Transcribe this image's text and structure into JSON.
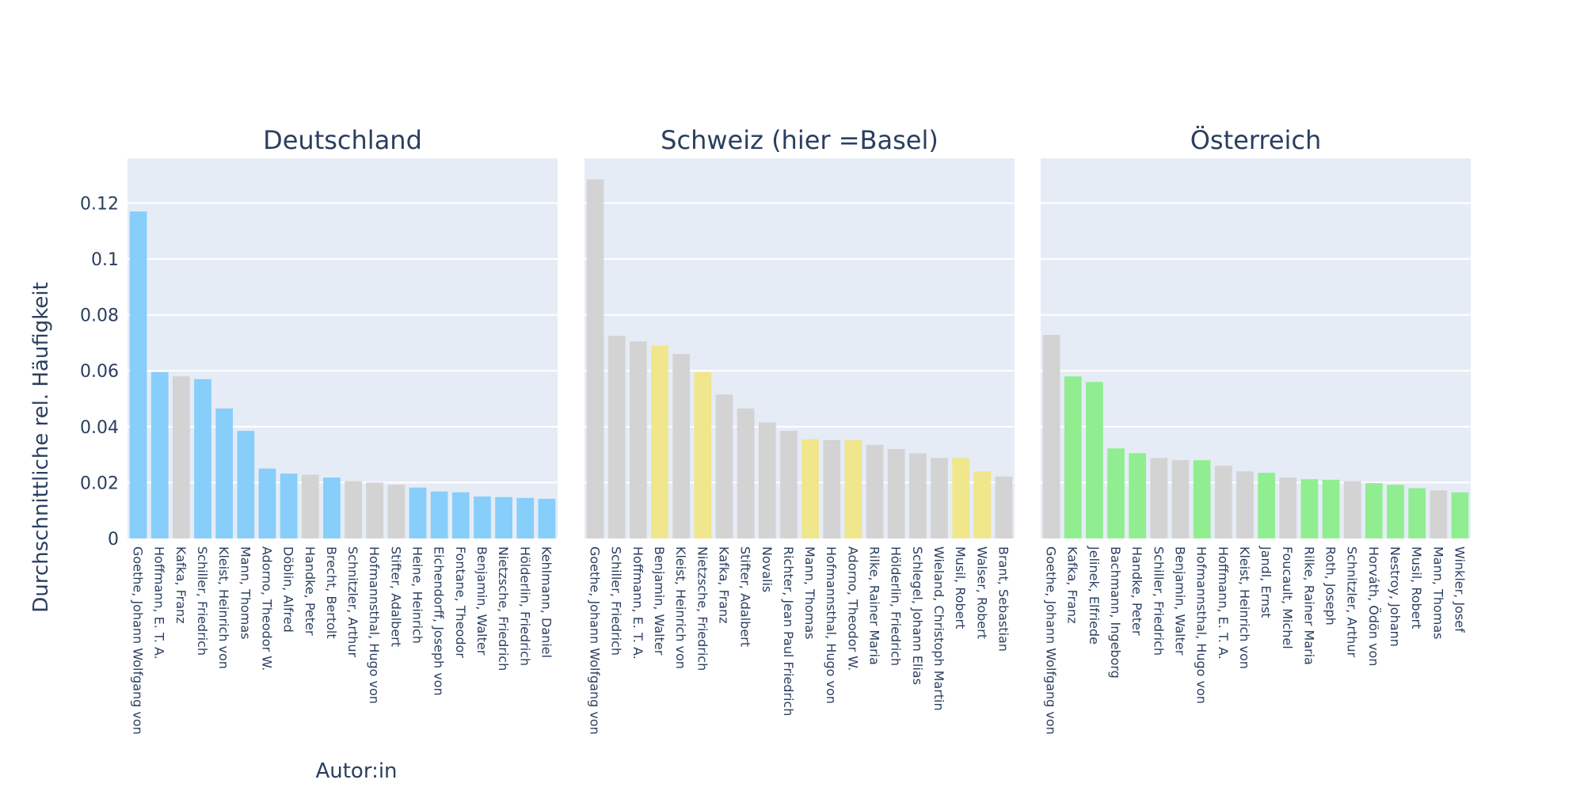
{
  "chart_data": {
    "type": "bar",
    "ylabel": "Durchschnittliche rel. Häufigkeit",
    "xlabel": "Autor:in",
    "ylim": [
      0,
      0.136
    ],
    "yticks": [
      0,
      0.02,
      0.04,
      0.06,
      0.08,
      0.1,
      0.12
    ],
    "ytick_labels": [
      "0",
      "0.02",
      "0.04",
      "0.06",
      "0.08",
      "0.1",
      "0.12"
    ],
    "grid": true,
    "colors": {
      "plot_bg": "#E5ECF6",
      "grid": "#ffffff",
      "text": "#2a3f5f",
      "grey": "#D3D3D3",
      "blue": "#87CEFA",
      "yellow": "#F0E68C",
      "green": "#90EE90"
    },
    "panels": [
      {
        "title": "Deutschland",
        "categories": [
          "Goethe, Johann Wolfgang von",
          "Hoffmann, E. T. A.",
          "Kafka, Franz",
          "Schiller, Friedrich",
          "Kleist, Heinrich von",
          "Mann, Thomas",
          "Adorno, Theodor W.",
          "Döblin, Alfred",
          "Handke, Peter",
          "Brecht, Bertolt",
          "Schnitzler, Arthur",
          "Hofmannsthal, Hugo von",
          "Stifter, Adalbert",
          "Heine, Heinrich",
          "Eichendorff, Joseph von",
          "Fontane, Theodor",
          "Benjamin, Walter",
          "Nietzsche, Friedrich",
          "Hölderlin, Friedrich",
          "Kehlmann, Daniel"
        ],
        "values": [
          0.117,
          0.0595,
          0.058,
          0.057,
          0.0465,
          0.0385,
          0.025,
          0.0232,
          0.0228,
          0.0218,
          0.0205,
          0.02,
          0.0192,
          0.0182,
          0.0168,
          0.0165,
          0.015,
          0.0148,
          0.0145,
          0.0142
        ],
        "bar_colors": [
          "blue",
          "blue",
          "grey",
          "blue",
          "blue",
          "blue",
          "blue",
          "blue",
          "grey",
          "blue",
          "grey",
          "grey",
          "grey",
          "blue",
          "blue",
          "blue",
          "blue",
          "blue",
          "blue",
          "blue"
        ]
      },
      {
        "title": "Schweiz (hier =Basel)",
        "categories": [
          "Goethe, Johann Wolfgang von",
          "Schiller, Friedrich",
          "Hoffmann, E. T. A.",
          "Benjamin, Walter",
          "Kleist, Heinrich von",
          "Nietzsche, Friedrich",
          "Kafka, Franz",
          "Stifter, Adalbert",
          "Novalis",
          "Richter, Jean Paul Friedrich",
          "Mann, Thomas",
          "Hofmannsthal, Hugo von",
          "Adorno, Theodor W.",
          "Rilke, Rainer Maria",
          "Hölderlin, Friedrich",
          "Schlegel, Johann Elias",
          "Wieland, Christoph Martin",
          "Musil, Robert",
          "Walser, Robert",
          "Brant, Sebastian"
        ],
        "values": [
          0.1285,
          0.0725,
          0.0705,
          0.069,
          0.066,
          0.0595,
          0.0515,
          0.0465,
          0.0415,
          0.0385,
          0.0355,
          0.0352,
          0.0352,
          0.0335,
          0.032,
          0.0305,
          0.0288,
          0.0288,
          0.024,
          0.0222
        ],
        "bar_colors": [
          "grey",
          "grey",
          "grey",
          "yellow",
          "grey",
          "yellow",
          "grey",
          "grey",
          "grey",
          "grey",
          "yellow",
          "grey",
          "yellow",
          "grey",
          "grey",
          "grey",
          "grey",
          "yellow",
          "yellow",
          "grey"
        ]
      },
      {
        "title": "Österreich",
        "categories": [
          "Goethe, Johann Wolfgang von",
          "Kafka, Franz",
          "Jelinek, Elfriede",
          "Bachmann, Ingeborg",
          "Handke, Peter",
          "Schiller, Friedrich",
          "Benjamin, Walter",
          "Hofmannsthal, Hugo von",
          "Hoffmann, E. T. A.",
          "Kleist, Heinrich von",
          "Jandl, Ernst",
          "Foucault, Michel",
          "Rilke, Rainer Maria",
          "Roth, Joseph",
          "Schnitzler, Arthur",
          "Horváth, Ödön von",
          "Nestroy, Johann",
          "Musil, Robert",
          "Mann, Thomas",
          "Winkler, Josef"
        ],
        "values": [
          0.0728,
          0.058,
          0.056,
          0.0322,
          0.0305,
          0.0288,
          0.028,
          0.028,
          0.026,
          0.024,
          0.0235,
          0.0218,
          0.0212,
          0.021,
          0.0205,
          0.0198,
          0.0192,
          0.018,
          0.0172,
          0.0165
        ],
        "bar_colors": [
          "grey",
          "green",
          "green",
          "green",
          "green",
          "grey",
          "grey",
          "green",
          "grey",
          "grey",
          "green",
          "grey",
          "green",
          "green",
          "grey",
          "green",
          "green",
          "green",
          "grey",
          "green"
        ]
      }
    ]
  }
}
